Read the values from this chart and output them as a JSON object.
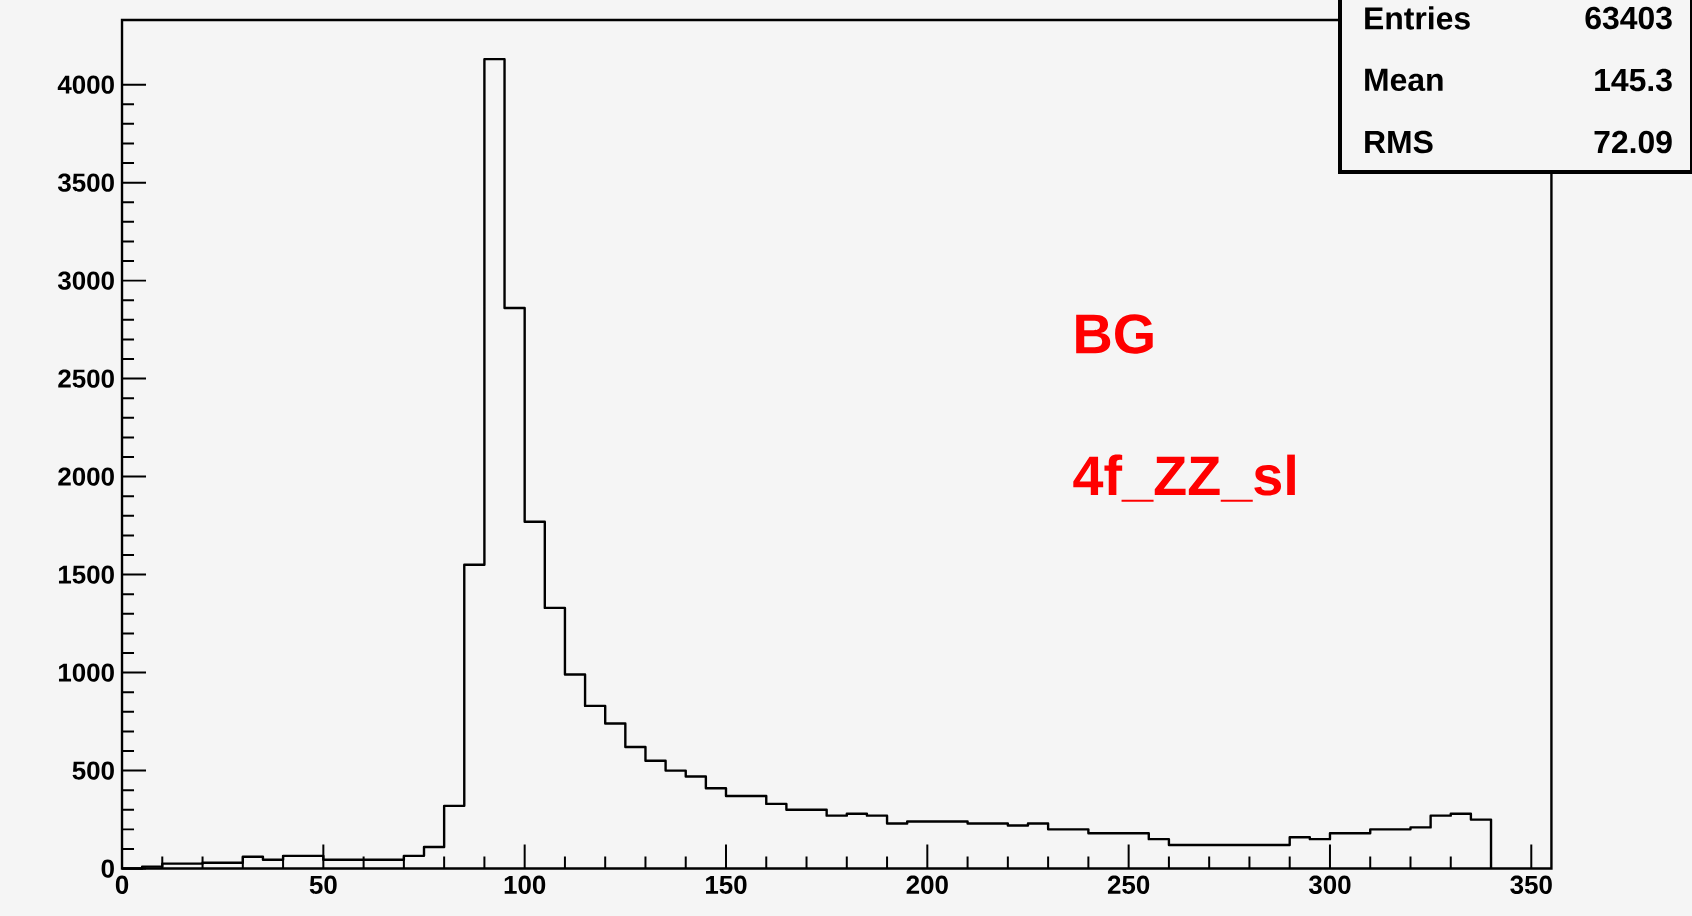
{
  "chart_data": {
    "type": "histogram",
    "bins": [
      0,
      5,
      10,
      15,
      20,
      25,
      30,
      35,
      40,
      45,
      50,
      55,
      60,
      65,
      70,
      75,
      80,
      85,
      90,
      95,
      100,
      105,
      110,
      115,
      120,
      125,
      130,
      135,
      140,
      145,
      150,
      155,
      160,
      165,
      170,
      175,
      180,
      185,
      190,
      195,
      200,
      205,
      210,
      215,
      220,
      225,
      230,
      235,
      240,
      245,
      250,
      255,
      260,
      265,
      270,
      275,
      280,
      285,
      290,
      295,
      300,
      305,
      310,
      315,
      320,
      325,
      330,
      335,
      340
    ],
    "values": [
      0,
      10,
      25,
      25,
      30,
      30,
      60,
      45,
      65,
      65,
      45,
      45,
      45,
      45,
      65,
      110,
      320,
      1550,
      4130,
      2860,
      1770,
      1330,
      990,
      830,
      740,
      620,
      550,
      500,
      470,
      410,
      370,
      370,
      330,
      300,
      300,
      270,
      280,
      270,
      230,
      240,
      240,
      240,
      230,
      230,
      220,
      230,
      200,
      200,
      180,
      180,
      180,
      150,
      120,
      120,
      120,
      120,
      120,
      120,
      160,
      150,
      180,
      180,
      200,
      200,
      210,
      270,
      280,
      250
    ],
    "color": "#000000",
    "xlim": [
      0,
      355
    ],
    "ylim": [
      0,
      4330
    ],
    "xticks": [
      0,
      50,
      100,
      150,
      200,
      250,
      300,
      350
    ],
    "yticks": [
      0,
      500,
      1000,
      1500,
      2000,
      2500,
      3000,
      3500,
      4000
    ],
    "annotations": [
      "BG",
      "4f_ZZ_sl",
      "Entries",
      "63403",
      "Mean",
      "145.3",
      "RMS",
      "72.09"
    ],
    "grid": false
  }
}
